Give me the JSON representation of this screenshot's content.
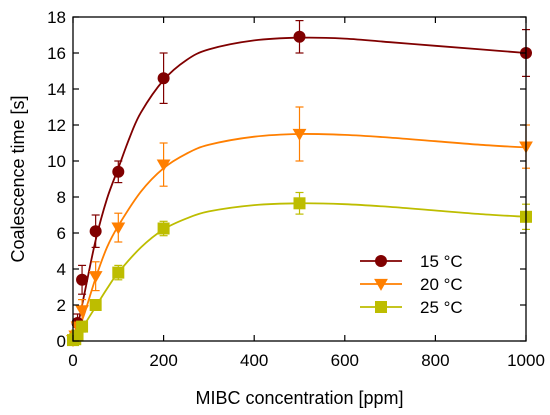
{
  "chart_data": {
    "type": "line",
    "title": "",
    "xlabel": "MIBC concentration [ppm]",
    "ylabel": "Coalescence time [s]",
    "xlim": [
      0,
      1000
    ],
    "ylim": [
      0,
      18
    ],
    "xticks": [
      0,
      200,
      400,
      600,
      800,
      1000
    ],
    "yticks": [
      0,
      2,
      4,
      6,
      8,
      10,
      12,
      14,
      16,
      18
    ],
    "grid": false,
    "legend_position": "bottom-right",
    "series": [
      {
        "name": "15 °C",
        "color": "#800000",
        "marker": "circle",
        "x": [
          0,
          5,
          10,
          20,
          50,
          100,
          200,
          500,
          1000
        ],
        "y": [
          0.05,
          0.3,
          1.0,
          3.4,
          6.1,
          9.4,
          14.6,
          16.9,
          16.0
        ],
        "err": [
          0.05,
          0.2,
          0.5,
          0.8,
          0.9,
          0.6,
          1.4,
          0.9,
          1.3
        ],
        "fit": [
          [
            0,
            0.0
          ],
          [
            10,
            0.8
          ],
          [
            25,
            2.6
          ],
          [
            50,
            5.6
          ],
          [
            75,
            7.9
          ],
          [
            100,
            9.6
          ],
          [
            125,
            11.3
          ],
          [
            150,
            12.7
          ],
          [
            200,
            14.5
          ],
          [
            250,
            15.6
          ],
          [
            300,
            16.2
          ],
          [
            400,
            16.7
          ],
          [
            500,
            16.85
          ],
          [
            600,
            16.8
          ],
          [
            700,
            16.6
          ],
          [
            800,
            16.4
          ],
          [
            900,
            16.2
          ],
          [
            1000,
            16.0
          ]
        ]
      },
      {
        "name": "20 °C",
        "color": "#ff7f00",
        "marker": "triangle-down",
        "x": [
          0,
          5,
          10,
          20,
          50,
          100,
          200,
          500,
          1000
        ],
        "y": [
          0.05,
          0.3,
          0.8,
          1.7,
          3.6,
          6.3,
          9.8,
          11.5,
          10.8
        ],
        "err": [
          0.05,
          0.3,
          0.4,
          0.6,
          0.8,
          0.8,
          1.2,
          1.5,
          1.2
        ],
        "fit": [
          [
            0,
            0.0
          ],
          [
            10,
            0.5
          ],
          [
            25,
            1.5
          ],
          [
            50,
            3.5
          ],
          [
            75,
            5.2
          ],
          [
            100,
            6.4
          ],
          [
            150,
            8.3
          ],
          [
            200,
            9.6
          ],
          [
            250,
            10.4
          ],
          [
            300,
            10.9
          ],
          [
            400,
            11.35
          ],
          [
            500,
            11.5
          ],
          [
            600,
            11.45
          ],
          [
            700,
            11.3
          ],
          [
            800,
            11.1
          ],
          [
            900,
            10.9
          ],
          [
            1000,
            10.75
          ]
        ]
      },
      {
        "name": "25 °C",
        "color": "#bdbd00",
        "marker": "square",
        "x": [
          0,
          5,
          10,
          20,
          50,
          100,
          200,
          500,
          1000
        ],
        "y": [
          0.05,
          0.1,
          0.3,
          0.8,
          2.0,
          3.8,
          6.25,
          7.65,
          6.9
        ],
        "err": [
          0.05,
          0.1,
          0.2,
          0.3,
          0.3,
          0.4,
          0.4,
          0.6,
          0.7
        ],
        "fit": [
          [
            0,
            0.0
          ],
          [
            10,
            0.3
          ],
          [
            25,
            0.9
          ],
          [
            50,
            1.9
          ],
          [
            75,
            2.9
          ],
          [
            100,
            3.8
          ],
          [
            150,
            5.2
          ],
          [
            200,
            6.2
          ],
          [
            250,
            6.8
          ],
          [
            300,
            7.2
          ],
          [
            400,
            7.55
          ],
          [
            500,
            7.65
          ],
          [
            600,
            7.6
          ],
          [
            700,
            7.45
          ],
          [
            800,
            7.25
          ],
          [
            900,
            7.05
          ],
          [
            1000,
            6.9
          ]
        ]
      }
    ]
  }
}
